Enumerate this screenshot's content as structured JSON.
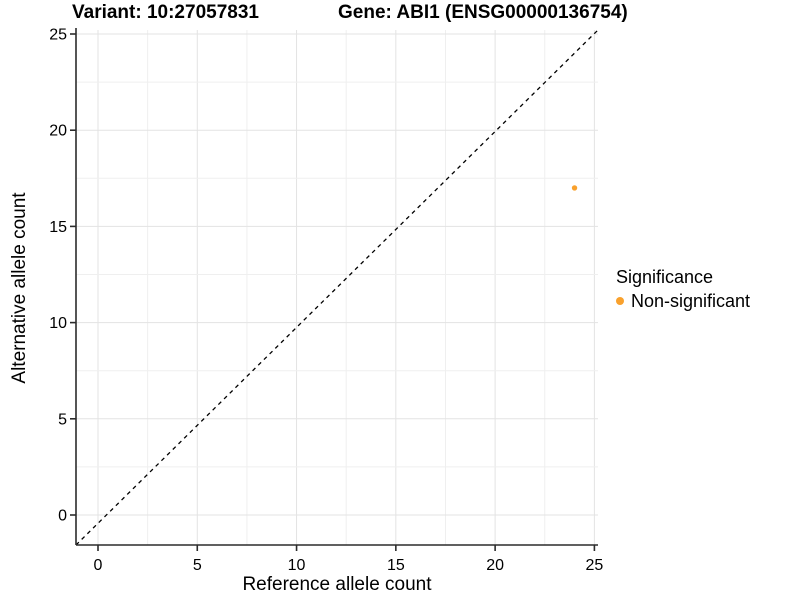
{
  "titles": {
    "variant": "Variant: 10:27057831",
    "gene": "Gene: ABI1 (ENSG00000136754)"
  },
  "chart_data": {
    "type": "scatter",
    "title_left": "Variant: 10:27057831",
    "title_right": "Gene: ABI1 (ENSG00000136754)",
    "xlabel": "Reference allele count",
    "ylabel": "Alternative allele count",
    "xlim": [
      0,
      25
    ],
    "ylim": [
      0,
      25
    ],
    "xticks": [
      0,
      5,
      10,
      15,
      20,
      25
    ],
    "yticks": [
      0,
      5,
      10,
      15,
      20,
      25
    ],
    "grid": "on",
    "gridline_interval": 2.5,
    "reference_line": {
      "type": "identity",
      "slope": 1,
      "intercept": 0,
      "style": "dashed",
      "color": "#000000"
    },
    "series": [
      {
        "name": "Non-significant",
        "color": "#F9A12D",
        "points": [
          {
            "x": 24,
            "y": 17
          }
        ]
      }
    ],
    "legend": {
      "title": "Significance",
      "position": "right",
      "entries": [
        {
          "label": "Non-significant",
          "color": "#F9A12D"
        }
      ]
    }
  },
  "colors": {
    "background": "#FFFFFF",
    "axis_line": "#2B2B2B",
    "tick_text": "#000000",
    "grid_major": "#E3E3E3",
    "grid_minor": "#EFEFEF",
    "point_orange": "#F9A12D",
    "reference_line": "#000000"
  }
}
